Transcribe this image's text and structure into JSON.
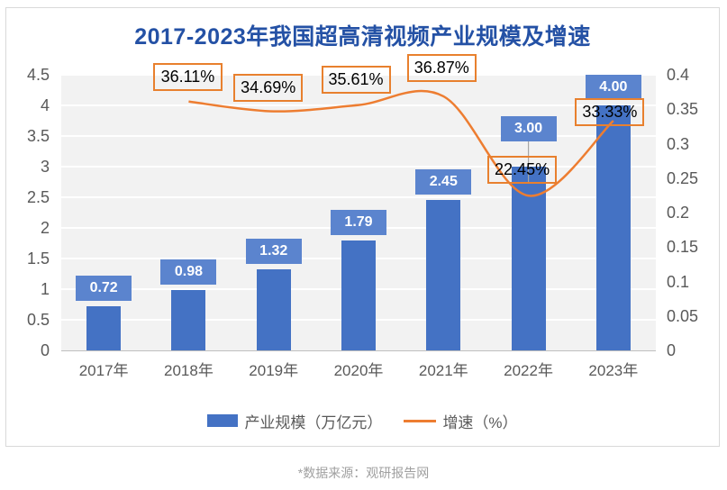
{
  "title": "2017-2023年我国超高清视频产业规模及增速",
  "source_note": "*数据来源：观研报告网",
  "legend": {
    "bar_label": "产业规模（万亿元）",
    "line_label": "增速（%）"
  },
  "colors": {
    "bar": "#4472C4",
    "bar_value_box": "#5B84CE",
    "line": "#ED7D31",
    "pct_box_border": "#E8802E",
    "title_text": "#2451A5",
    "axis_text": "#595959",
    "plot_bg": "#F2F2F2",
    "gridline": "#FFFFFF",
    "axis_line": "#BFBFBF",
    "leader_line": "#A6A6A6",
    "source_text": "#A0A0A0",
    "card_border": "#D9D9D9"
  },
  "chart_data": {
    "type": "bar",
    "subtype": "bar-line-combo",
    "title": "2017-2023年我国超高清视频产业规模及增速",
    "categories": [
      "2017年",
      "2018年",
      "2019年",
      "2020年",
      "2021年",
      "2022年",
      "2023年"
    ],
    "series": [
      {
        "name": "产业规模（万亿元）",
        "type": "bar",
        "axis": "left",
        "values": [
          0.72,
          0.98,
          1.32,
          1.79,
          2.45,
          3.0,
          4.0
        ],
        "labels": [
          "0.72",
          "0.98",
          "1.32",
          "1.79",
          "2.45",
          "3.00",
          "4.00"
        ]
      },
      {
        "name": "增速（%）",
        "type": "line",
        "smooth": true,
        "axis": "right",
        "values": [
          null,
          0.3611,
          0.3469,
          0.3561,
          0.3687,
          0.2245,
          0.3333
        ],
        "labels": [
          null,
          "36.11%",
          "34.69%",
          "35.61%",
          "36.87%",
          "22.45%",
          "33.33%"
        ]
      }
    ],
    "left_axis": {
      "min": 0,
      "max": 4.5,
      "step": 0.5,
      "ticks": [
        "4.5",
        "4",
        "3.5",
        "3",
        "2.5",
        "2",
        "1.5",
        "1",
        "0.5",
        "0"
      ]
    },
    "right_axis": {
      "min": 0,
      "max": 0.4,
      "step": 0.05,
      "ticks": [
        "0.4",
        "0.35",
        "0.3",
        "0.25",
        "0.2",
        "0.15",
        "0.1",
        "0.05",
        "0"
      ]
    },
    "grid": true,
    "legend_position": "bottom",
    "xlabel": "",
    "ylabel_left": "产业规模（万亿元）",
    "ylabel_right": "增速（%）"
  }
}
